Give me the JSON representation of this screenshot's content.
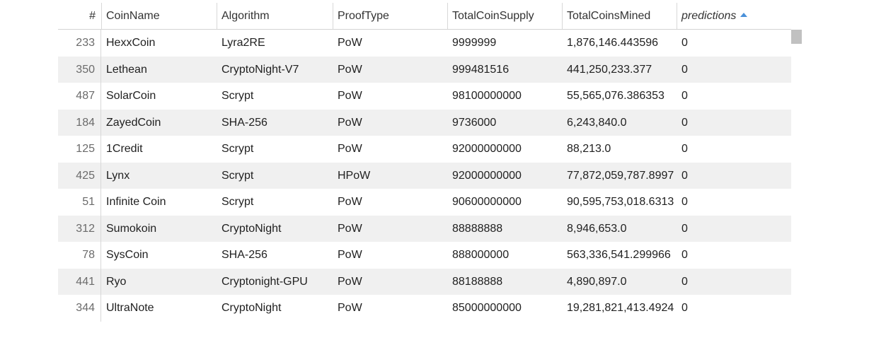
{
  "columns": {
    "index": "#",
    "coin_name": "CoinName",
    "algorithm": "Algorithm",
    "proof_type": "ProofType",
    "total_coin_supply": "TotalCoinSupply",
    "total_coins_mined": "TotalCoinsMined",
    "predictions": "predictions"
  },
  "sort": {
    "column": "predictions",
    "direction": "ascending",
    "icon": "sort-ascending-icon"
  },
  "rows": [
    {
      "index": "233",
      "coin_name": "HexxCoin",
      "algorithm": "Lyra2RE",
      "proof_type": "PoW",
      "total_coin_supply": "9999999",
      "total_coins_mined": "1,876,146.443596",
      "predictions": "0"
    },
    {
      "index": "350",
      "coin_name": "Lethean",
      "algorithm": "CryptoNight-V7",
      "proof_type": "PoW",
      "total_coin_supply": "999481516",
      "total_coins_mined": "441,250,233.377",
      "predictions": "0"
    },
    {
      "index": "487",
      "coin_name": "SolarCoin",
      "algorithm": "Scrypt",
      "proof_type": "PoW",
      "total_coin_supply": "98100000000",
      "total_coins_mined": "55,565,076.386353",
      "predictions": "0"
    },
    {
      "index": "184",
      "coin_name": "ZayedCoin",
      "algorithm": "SHA-256",
      "proof_type": "PoW",
      "total_coin_supply": "9736000",
      "total_coins_mined": "6,243,840.0",
      "predictions": "0"
    },
    {
      "index": "125",
      "coin_name": "1Credit",
      "algorithm": "Scrypt",
      "proof_type": "PoW",
      "total_coin_supply": "92000000000",
      "total_coins_mined": "88,213.0",
      "predictions": "0"
    },
    {
      "index": "425",
      "coin_name": "Lynx",
      "algorithm": "Scrypt",
      "proof_type": "HPoW",
      "total_coin_supply": "92000000000",
      "total_coins_mined": "77,872,059,787.8997",
      "predictions": "0"
    },
    {
      "index": "51",
      "coin_name": "Infinite Coin",
      "algorithm": "Scrypt",
      "proof_type": "PoW",
      "total_coin_supply": "90600000000",
      "total_coins_mined": "90,595,753,018.6313",
      "predictions": "0"
    },
    {
      "index": "312",
      "coin_name": "Sumokoin",
      "algorithm": "CryptoNight",
      "proof_type": "PoW",
      "total_coin_supply": "88888888",
      "total_coins_mined": "8,946,653.0",
      "predictions": "0"
    },
    {
      "index": "78",
      "coin_name": "SysCoin",
      "algorithm": "SHA-256",
      "proof_type": "PoW",
      "total_coin_supply": "888000000",
      "total_coins_mined": "563,336,541.299966",
      "predictions": "0"
    },
    {
      "index": "441",
      "coin_name": "Ryo",
      "algorithm": "Cryptonight-GPU",
      "proof_type": "PoW",
      "total_coin_supply": "88188888",
      "total_coins_mined": "4,890,897.0",
      "predictions": "0"
    },
    {
      "index": "344",
      "coin_name": "UltraNote",
      "algorithm": "CryptoNight",
      "proof_type": "PoW",
      "total_coin_supply": "85000000000",
      "total_coins_mined": "19,281,821,413.4924",
      "predictions": "0"
    }
  ]
}
